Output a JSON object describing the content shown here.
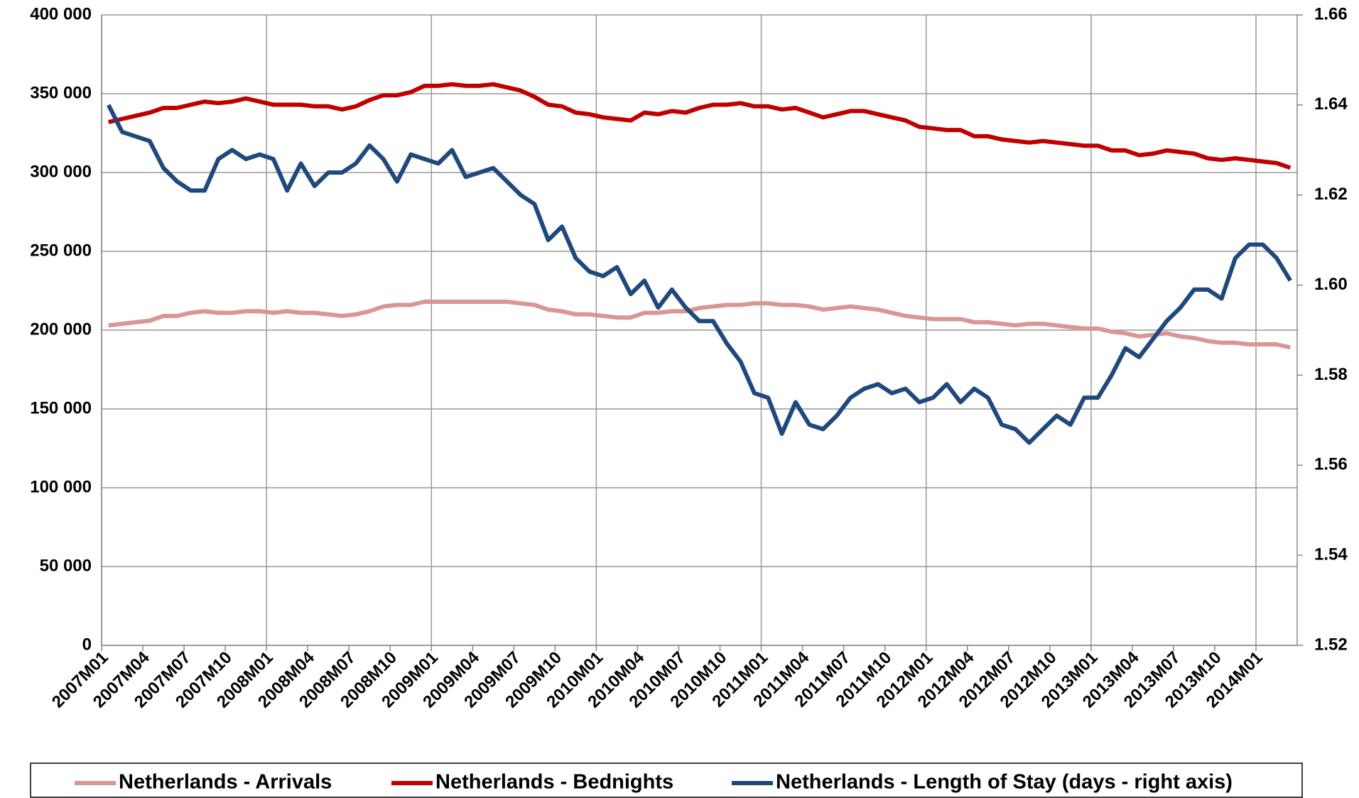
{
  "chart_data": {
    "type": "line",
    "categories": [
      "2007M01",
      null,
      null,
      "2007M04",
      null,
      null,
      "2007M07",
      null,
      null,
      "2007M10",
      null,
      null,
      "2008M01",
      null,
      null,
      "2008M04",
      null,
      null,
      "2008M07",
      null,
      null,
      "2008M10",
      null,
      null,
      "2009M01",
      null,
      null,
      "2009M04",
      null,
      null,
      "2009M07",
      null,
      null,
      "2009M10",
      null,
      null,
      "2010M01",
      null,
      null,
      "2010M04",
      null,
      null,
      "2010M07",
      null,
      null,
      "2010M10",
      null,
      null,
      "2011M01",
      null,
      null,
      "2011M04",
      null,
      null,
      "2011M07",
      null,
      null,
      "2011M10",
      null,
      null,
      "2012M01",
      null,
      null,
      "2012M04",
      null,
      null,
      "2012M07",
      null,
      null,
      "2012M10",
      null,
      null,
      "2013M01",
      null,
      null,
      "2013M04",
      null,
      null,
      "2013M07",
      null,
      null,
      "2013M10",
      null,
      null,
      "2014M01",
      null,
      null
    ],
    "series": [
      {
        "name": "Netherlands - Arrivals",
        "color": "#d99694",
        "values": [
          203000,
          204000,
          205000,
          206000,
          209000,
          209000,
          211000,
          212000,
          211000,
          211000,
          212000,
          212000,
          211000,
          212000,
          211000,
          211000,
          210000,
          209000,
          210000,
          212000,
          215000,
          216000,
          216000,
          218000,
          218000,
          218000,
          218000,
          218000,
          218000,
          218000,
          217000,
          216000,
          213000,
          212000,
          210000,
          210000,
          209000,
          208000,
          208000,
          211000,
          211000,
          212000,
          212000,
          214000,
          215000,
          216000,
          216000,
          217000,
          217000,
          216000,
          216000,
          215000,
          213000,
          214000,
          215000,
          214000,
          213000,
          211000,
          209000,
          208000,
          207000,
          207000,
          207000,
          205000,
          205000,
          204000,
          203000,
          204000,
          204000,
          203000,
          202000,
          201000,
          201000,
          199000,
          198000,
          196000,
          197000,
          198000,
          196000,
          195000,
          193000,
          192000,
          192000,
          191000,
          191000,
          191000,
          189000
        ]
      },
      {
        "name": "Netherlands - Bednights",
        "color": "#c00000",
        "values": [
          332000,
          334000,
          336000,
          338000,
          341000,
          341000,
          343000,
          345000,
          344000,
          345000,
          347000,
          345000,
          343000,
          343000,
          343000,
          342000,
          342000,
          340000,
          342000,
          346000,
          349000,
          349000,
          351000,
          355000,
          355000,
          356000,
          355000,
          355000,
          356000,
          354000,
          352000,
          348000,
          343000,
          342000,
          338000,
          337000,
          335000,
          334000,
          333000,
          338000,
          337000,
          339000,
          338000,
          341000,
          343000,
          343000,
          344000,
          342000,
          342000,
          340000,
          341000,
          338000,
          335000,
          337000,
          339000,
          339000,
          337000,
          335000,
          333000,
          329000,
          328000,
          327000,
          327000,
          323000,
          323000,
          321000,
          320000,
          319000,
          320000,
          319000,
          318000,
          317000,
          317000,
          314000,
          314000,
          311000,
          312000,
          314000,
          313000,
          312000,
          309000,
          308000,
          309000,
          308000,
          307000,
          306000,
          303000
        ]
      },
      {
        "name": "Netherlands - Length of Stay (days - right axis)",
        "color": "#1f497d",
        "axis": "y2",
        "values": [
          1.64,
          1.634,
          1.633,
          1.632,
          1.626,
          1.623,
          1.621,
          1.621,
          1.628,
          1.63,
          1.628,
          1.629,
          1.628,
          1.621,
          1.627,
          1.622,
          1.625,
          1.625,
          1.627,
          1.631,
          1.628,
          1.623,
          1.629,
          1.628,
          1.627,
          1.63,
          1.624,
          1.625,
          1.626,
          1.623,
          1.62,
          1.618,
          1.61,
          1.613,
          1.606,
          1.603,
          1.602,
          1.604,
          1.598,
          1.601,
          1.595,
          1.599,
          1.595,
          1.592,
          1.592,
          1.587,
          1.583,
          1.576,
          1.575,
          1.567,
          1.574,
          1.569,
          1.568,
          1.571,
          1.575,
          1.577,
          1.578,
          1.576,
          1.577,
          1.574,
          1.575,
          1.578,
          1.574,
          1.577,
          1.575,
          1.569,
          1.568,
          1.565,
          1.568,
          1.571,
          1.569,
          1.575,
          1.575,
          1.58,
          1.586,
          1.584,
          1.588,
          1.592,
          1.595,
          1.599,
          1.599,
          1.597,
          1.606,
          1.609,
          1.609,
          1.606,
          1.601
        ]
      }
    ],
    "ylim": [
      0,
      400000
    ],
    "yticks": [
      {
        "value": 0,
        "label": "0"
      },
      {
        "value": 50000,
        "label": "50 000"
      },
      {
        "value": 100000,
        "label": "100 000"
      },
      {
        "value": 150000,
        "label": "150 000"
      },
      {
        "value": 200000,
        "label": "200 000"
      },
      {
        "value": 250000,
        "label": "250 000"
      },
      {
        "value": 300000,
        "label": "300 000"
      },
      {
        "value": 350000,
        "label": "350 000"
      },
      {
        "value": 400000,
        "label": "400 000"
      }
    ],
    "y2lim": [
      1.52,
      1.66
    ],
    "y2ticks": [
      1.52,
      1.54,
      1.56,
      1.58,
      {
        "value": 1.6,
        "label": "1.60"
      },
      1.62,
      1.64,
      1.66
    ],
    "grid": true,
    "legend": "bottom"
  }
}
